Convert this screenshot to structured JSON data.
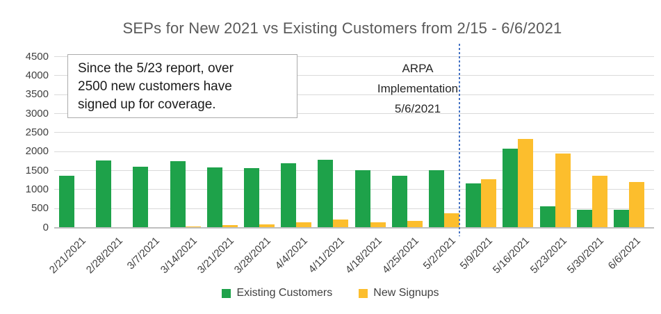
{
  "title": "SEPs for New 2021 vs Existing Customers from 2/15 - 6/6/2021",
  "annotation": {
    "lines": [
      "Since the 5/23 report, over",
      "2500 new customers have",
      "signed up for coverage."
    ]
  },
  "event_marker": {
    "lines": [
      "ARPA",
      "Implementation",
      "5/6/2021"
    ],
    "line_color": "#4472c4"
  },
  "legend": [
    {
      "label": "Existing Customers",
      "color": "#1ea24a"
    },
    {
      "label": "New Signups",
      "color": "#fcbe2d"
    }
  ],
  "colors": {
    "title": "#595959",
    "axis_labels": "#404040",
    "gridline": "#d9d9d9",
    "axis_line": "#bfbfbf",
    "existing_customers": "#1ea24a",
    "new_signups": "#fcbe2d",
    "event_line": "#4472c4"
  },
  "chart_data": {
    "type": "bar",
    "title": "SEPs for New 2021 vs Existing Customers from 2/15 - 6/6/2021",
    "categories": [
      "2/21/2021",
      "2/28/2021",
      "3/7/2021",
      "3/14/2021",
      "3/21/2021",
      "3/28/2021",
      "4/4/2021",
      "4/11/2021",
      "4/18/2021",
      "4/25/2021",
      "5/2/2021",
      "5/9/2021",
      "5/16/2021",
      "5/23/2021",
      "5/30/2021",
      "6/6/2021"
    ],
    "series": [
      {
        "name": "Existing Customers",
        "color": "#1ea24a",
        "values": [
          1360,
          1760,
          1590,
          1740,
          1580,
          1560,
          1690,
          1770,
          1500,
          1360,
          1500,
          1160,
          2060,
          540,
          460,
          460
        ]
      },
      {
        "name": "New Signups",
        "color": "#fcbe2d",
        "values": [
          0,
          0,
          0,
          20,
          60,
          80,
          130,
          200,
          120,
          170,
          370,
          1260,
          2330,
          1930,
          1360,
          1180
        ]
      }
    ],
    "xlabel": "",
    "ylabel": "",
    "ylim": [
      0,
      4500
    ],
    "ytick_step": 500,
    "grid": true,
    "legend_position": "bottom",
    "annotations": [
      {
        "type": "textbox",
        "text": "Since the 5/23 report, over 2500 new customers have signed up for coverage."
      },
      {
        "type": "vline",
        "x": "5/6/2021",
        "label": "ARPA Implementation 5/6/2021"
      }
    ]
  }
}
